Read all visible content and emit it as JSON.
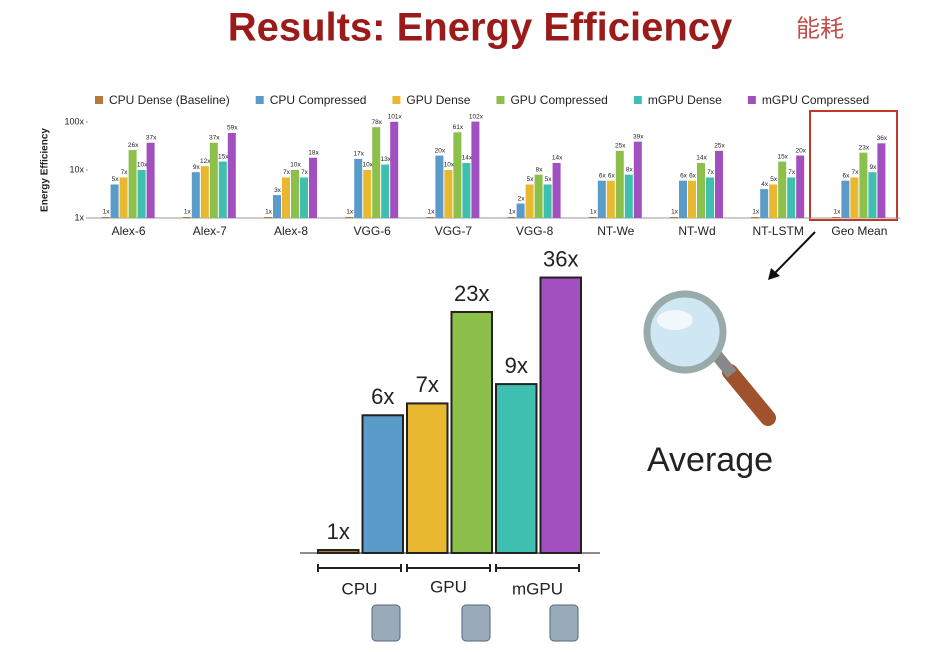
{
  "slide": {
    "title": "Results: Energy Efficiency",
    "note": "能耗",
    "callout": "Average"
  },
  "chart_data": [
    {
      "type": "bar",
      "log": true,
      "ylabel": "Energy Efficiency",
      "categories": [
        "Alex-6",
        "Alex-7",
        "Alex-8",
        "VGG-6",
        "VGG-7",
        "VGG-8",
        "NT-We",
        "NT-Wd",
        "NT-LSTM",
        "Geo Mean"
      ],
      "ylim": [
        1,
        100
      ],
      "yticks": [
        {
          "value": 1,
          "label": "1x"
        },
        {
          "value": 10,
          "label": "10x"
        },
        {
          "value": 100,
          "label": "100x"
        }
      ],
      "series": [
        {
          "name": "CPU Dense (Baseline)",
          "color": "#b5773a",
          "values": [
            1,
            1,
            1,
            1,
            1,
            1,
            1,
            1,
            1,
            1
          ],
          "value_labels": [
            "1x",
            "1x",
            "1x",
            "1x",
            "1x",
            "1x",
            "1x",
            "1x",
            "1x",
            "1x"
          ]
        },
        {
          "name": "CPU Compressed",
          "color": "#5b9bc9",
          "values": [
            5,
            9,
            3,
            17,
            20,
            2,
            6,
            6,
            4,
            6
          ],
          "value_labels": [
            "5x",
            "9x",
            "3x",
            "17x",
            "20x",
            "2x",
            "6x",
            "6x",
            "4x",
            "6x"
          ]
        },
        {
          "name": "GPU Dense",
          "color": "#e8b830",
          "values": [
            7,
            12,
            7,
            10,
            10,
            5,
            6,
            6,
            5,
            7
          ],
          "value_labels": [
            "7x",
            "12x",
            "7x",
            "10x",
            "10x",
            "5x",
            "6x",
            "6x",
            "5x",
            "7x"
          ]
        },
        {
          "name": "GPU Compressed",
          "color": "#8cc04b",
          "values": [
            26,
            37,
            10,
            78,
            61,
            8,
            25,
            14,
            15,
            23
          ],
          "value_labels": [
            "26x",
            "37x",
            "10x",
            "78x",
            "61x",
            "8x",
            "25x",
            "14x",
            "15x",
            "23x"
          ]
        },
        {
          "name": "mGPU Dense",
          "color": "#3fbfb0",
          "values": [
            10,
            15,
            7,
            13,
            14,
            5,
            8,
            7,
            7,
            9
          ],
          "value_labels": [
            "10x",
            "15x",
            "7x",
            "13x",
            "14x",
            "5x",
            "8x",
            "7x",
            "7x",
            "9x"
          ]
        },
        {
          "name": "mGPU Compressed",
          "color": "#a24fc0",
          "values": [
            37,
            59,
            18,
            101,
            102,
            14,
            39,
            25,
            20,
            36
          ],
          "value_labels": [
            "37x",
            "59x",
            "18x",
            "101x",
            "102x",
            "14x",
            "39x",
            "25x",
            "20x",
            "36x"
          ]
        }
      ]
    },
    {
      "type": "bar",
      "log": true,
      "ylim": [
        1,
        100
      ],
      "categories": [
        null,
        null,
        null,
        null,
        null,
        null
      ],
      "groups": [
        "CPU",
        "GPU",
        "mGPU"
      ],
      "values": [
        1,
        6,
        7,
        23,
        9,
        36
      ],
      "value_labels": [
        "1x",
        "6x",
        "7x",
        "23x",
        "9x",
        "36x"
      ],
      "colors": [
        "#b5773a",
        "#5b9bc9",
        "#e8b830",
        "#8cc04b",
        "#3fbfb0",
        "#a24fc0"
      ]
    }
  ]
}
